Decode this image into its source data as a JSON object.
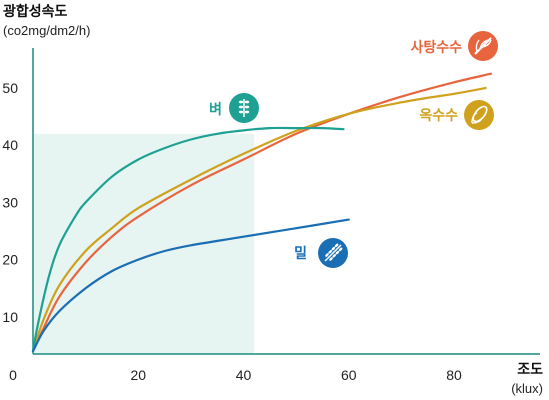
{
  "chart_data": {
    "type": "line",
    "ylabel": "광합성속도",
    "yunit": "(co2mg/dm2/h)",
    "xlabel": "조도",
    "xunit": "(klux)",
    "xlim": [
      0,
      95
    ],
    "ylim": [
      3.5,
      57
    ],
    "origin_label": "0",
    "x_ticks": [
      "20",
      "40",
      "60",
      "80"
    ],
    "x_tick_values": [
      20,
      40,
      60,
      80
    ],
    "y_ticks": [
      "10",
      "20",
      "30",
      "40",
      "50"
    ],
    "y_tick_values": [
      10,
      20,
      30,
      40,
      50
    ],
    "shaded_region": {
      "x": [
        0,
        42
      ],
      "y": [
        3.5,
        42
      ],
      "color": "#e6f4f2"
    },
    "series": [
      {
        "name": "사탕수수",
        "color": "#e8643c",
        "icon": "sugarcane-icon",
        "x": [
          0,
          2,
          5,
          10,
          15,
          20,
          30,
          40,
          50,
          60,
          70,
          80,
          87
        ],
        "y": [
          4,
          8,
          13.5,
          19.5,
          24,
          27.5,
          33,
          37.5,
          42,
          45.5,
          48.5,
          51,
          52.5
        ]
      },
      {
        "name": "옥수수",
        "color": "#cfa11c",
        "icon": "corn-icon",
        "x": [
          0,
          2,
          5,
          10,
          15,
          20,
          30,
          40,
          50,
          60,
          70,
          80,
          86
        ],
        "y": [
          4,
          9.5,
          15.5,
          21.5,
          25.5,
          29,
          34,
          38.5,
          42.5,
          45.5,
          47.5,
          49,
          50
        ]
      },
      {
        "name": "벼",
        "color": "#1ea193",
        "icon": "rice-icon",
        "x": [
          0,
          1,
          3,
          5,
          8,
          10,
          15,
          20,
          25,
          30,
          35,
          40,
          45,
          50,
          55,
          59
        ],
        "y": [
          4,
          9,
          17,
          22.5,
          27.5,
          30,
          34.5,
          37.5,
          39.5,
          41,
          42,
          42.6,
          43,
          43,
          43,
          42.8
        ]
      },
      {
        "name": "밀",
        "color": "#1a6eb4",
        "icon": "wheat-icon",
        "x": [
          0,
          2,
          5,
          10,
          15,
          20,
          25,
          30,
          40,
          50,
          60
        ],
        "y": [
          4,
          7.5,
          11,
          15,
          18,
          20,
          21.5,
          22.5,
          24,
          25.5,
          27
        ]
      }
    ]
  }
}
